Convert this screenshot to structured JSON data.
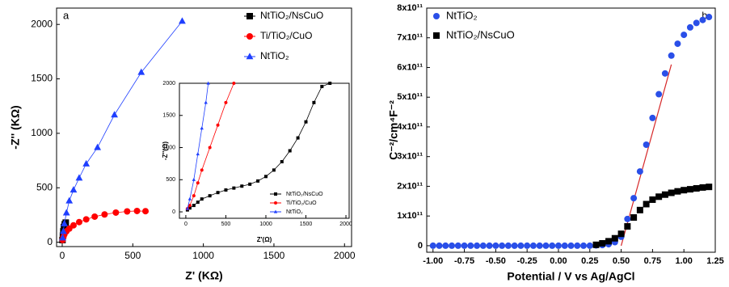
{
  "chart_data": [
    {
      "type": "line",
      "annotation": "a",
      "xlabel": "Z' (KΩ)",
      "ylabel": "-Z'' (KΩ)",
      "xlim": [
        -40,
        2050
      ],
      "xticks": [
        0,
        500,
        1000,
        1500,
        2000
      ],
      "ylim": [
        -40,
        2150
      ],
      "yticks": [
        0,
        500,
        1000,
        1500,
        2000
      ],
      "legend": "upper right",
      "series": [
        {
          "name": "NtTiO₂/NsCuO",
          "color": "#000000",
          "marker": "square",
          "x": [
            2,
            5,
            8,
            12,
            18,
            25
          ],
          "values": [
            20,
            60,
            100,
            140,
            165,
            180
          ]
        },
        {
          "name": "Ti/TiO₂/CuO",
          "color": "#ff0000",
          "marker": "circle",
          "x": [
            3,
            8,
            15,
            30,
            50,
            80,
            120,
            170,
            230,
            300,
            380,
            460,
            530,
            590
          ],
          "values": [
            20,
            45,
            70,
            100,
            125,
            155,
            185,
            210,
            235,
            255,
            272,
            283,
            287,
            285
          ]
        },
        {
          "name": "NtTiO₂",
          "color": "#1f3fff",
          "marker": "triangle",
          "x": [
            3,
            8,
            15,
            30,
            50,
            80,
            120,
            170,
            250,
            370,
            560,
            850
          ],
          "values": [
            40,
            100,
            170,
            270,
            380,
            480,
            590,
            720,
            870,
            1170,
            1560,
            2030
          ]
        }
      ]
    },
    {
      "type": "line",
      "xlabel": "Z'(Ω)",
      "ylabel": "-Z''(Ω)",
      "xlim": [
        -80,
        2040
      ],
      "xticks": [
        0,
        500,
        1000,
        1500,
        2000
      ],
      "ylim": [
        -100,
        2000
      ],
      "yticks": [
        0,
        500,
        1000,
        1500,
        2000
      ],
      "legend": "lower right",
      "series": [
        {
          "name": "NtTiO₂/NsCuO",
          "color": "#000000",
          "marker": "square",
          "x": [
            20,
            50,
            100,
            150,
            200,
            300,
            400,
            500,
            600,
            700,
            800,
            900,
            1000,
            1100,
            1200,
            1300,
            1400,
            1500,
            1600,
            1700,
            1800
          ],
          "values": [
            30,
            60,
            100,
            150,
            200,
            250,
            300,
            340,
            370,
            400,
            430,
            480,
            550,
            650,
            780,
            950,
            1150,
            1400,
            1700,
            1950,
            2000
          ]
        },
        {
          "name": "Ti/TiO₂/CuO",
          "color": "#ff0000",
          "marker": "circle",
          "x": [
            20,
            50,
            100,
            150,
            200,
            300,
            400,
            500,
            600
          ],
          "values": [
            50,
            100,
            250,
            450,
            650,
            1000,
            1350,
            1700,
            2000
          ]
        },
        {
          "name": "NtTiO₂",
          "color": "#1f3fff",
          "marker": "triangle",
          "x": [
            20,
            50,
            100,
            150,
            200,
            250,
            280
          ],
          "values": [
            50,
            200,
            500,
            900,
            1300,
            1700,
            2000
          ]
        }
      ]
    },
    {
      "type": "scatter",
      "annotation": "b",
      "xlabel": "Potential / V vs Ag/AgCl",
      "ylabel": "C⁻²/cm⁴F⁻²",
      "xlim": [
        -1.05,
        1.25
      ],
      "xticks": [
        {
          "value": -1,
          "label": "-1.00"
        },
        {
          "value": -0.75,
          "label": "-0.75"
        },
        {
          "value": -0.5,
          "label": "-0.50"
        },
        {
          "value": -0.25,
          "label": "-0.25"
        },
        {
          "value": 0,
          "label": "0.00"
        },
        {
          "value": 0.25,
          "label": "0.25"
        },
        {
          "value": 0.5,
          "label": "0.50"
        },
        {
          "value": 0.75,
          "label": "0.75"
        },
        {
          "value": 1,
          "label": "1.00"
        },
        {
          "value": 1.25,
          "label": "1.25"
        }
      ],
      "ylim": [
        -22000000000.0,
        800000000000.0
      ],
      "yticks": [
        0,
        {
          "value": 100000000000.0,
          "label": "1x10¹¹"
        },
        {
          "value": 200000000000.0,
          "label": "2x10¹¹"
        },
        {
          "value": 300000000000.0,
          "label": "3x10¹¹"
        },
        {
          "value": 400000000000.0,
          "label": "4x10¹¹"
        },
        {
          "value": 500000000000.0,
          "label": "5x10¹¹"
        },
        {
          "value": 600000000000.0,
          "label": "6x10¹¹"
        },
        {
          "value": 700000000000.0,
          "label": "7x10¹¹"
        },
        {
          "value": 800000000000.0,
          "label": "8x10¹¹"
        }
      ],
      "legend": "upper left",
      "series": [
        {
          "name": "NtTiO₂",
          "color": "#2a4fe8",
          "marker": "circle",
          "x": [
            -1,
            -0.95,
            -0.9,
            -0.85,
            -0.8,
            -0.75,
            -0.7,
            -0.65,
            -0.6,
            -0.55,
            -0.5,
            -0.45,
            -0.4,
            -0.35,
            -0.3,
            -0.25,
            -0.2,
            -0.15,
            -0.1,
            -0.05,
            0,
            0.05,
            0.1,
            0.15,
            0.2,
            0.25,
            0.3,
            0.35,
            0.4,
            0.45,
            0.5,
            0.55,
            0.6,
            0.65,
            0.7,
            0.75,
            0.8,
            0.85,
            0.9,
            0.95,
            1,
            1.05,
            1.1,
            1.15,
            1.2
          ],
          "values": [
            0,
            0,
            0,
            0,
            0,
            0,
            0,
            0,
            0,
            0,
            0,
            0,
            0,
            0,
            0,
            0,
            0,
            0,
            0,
            0,
            0,
            0,
            0,
            0,
            0,
            0,
            1000000000.0,
            2000000000.0,
            5000000000.0,
            12000000000.0,
            30000000000.0,
            90000000000.0,
            160000000000.0,
            250000000000.0,
            340000000000.0,
            430000000000.0,
            510000000000.0,
            580000000000.0,
            640000000000.0,
            680000000000.0,
            710000000000.0,
            735000000000.0,
            750000000000.0,
            760000000000.0,
            770000000000.0
          ]
        },
        {
          "name": "NtTiO₂/NsCuO",
          "color": "#000000",
          "marker": "square",
          "x": [
            0.3,
            0.35,
            0.4,
            0.45,
            0.5,
            0.55,
            0.6,
            0.65,
            0.7,
            0.75,
            0.8,
            0.85,
            0.9,
            0.95,
            1,
            1.05,
            1.1,
            1.15,
            1.2
          ],
          "values": [
            3000000000.0,
            8000000000.0,
            15000000000.0,
            25000000000.0,
            40000000000.0,
            65000000000.0,
            95000000000.0,
            120000000000.0,
            140000000000.0,
            155000000000.0,
            165000000000.0,
            172000000000.0,
            178000000000.0,
            183000000000.0,
            187000000000.0,
            190000000000.0,
            193000000000.0,
            196000000000.0,
            198000000000.0
          ]
        }
      ],
      "fit_line": {
        "color": "#d62728",
        "x": [
          0.5,
          0.9
        ],
        "values": [
          0,
          610000000000.0
        ]
      }
    }
  ]
}
